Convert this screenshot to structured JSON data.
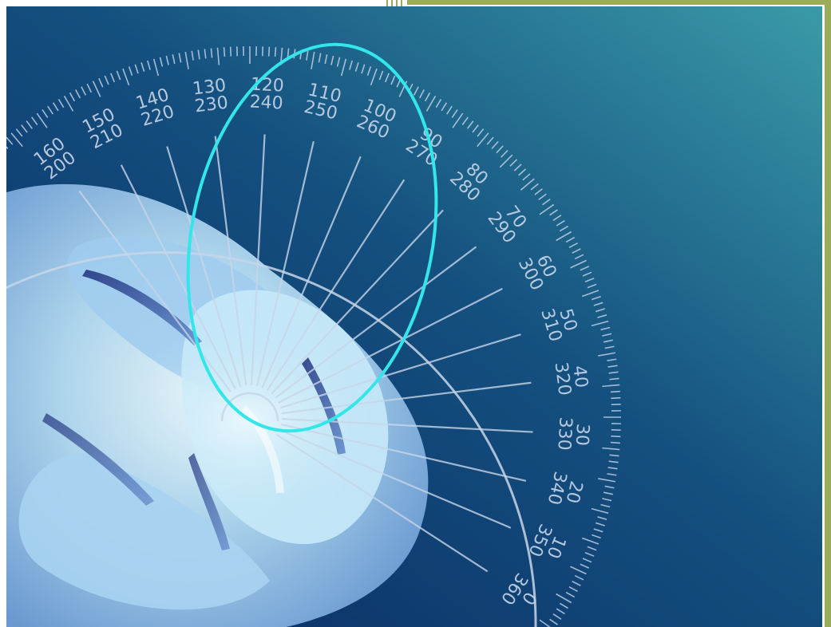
{
  "scene": {
    "subject": "compact-fluorescent-bulb-with-protractor",
    "colors": {
      "bg_dark": "#0c2f66",
      "bg_light": "#3a9aa8",
      "bulb": "#a9d4ef",
      "bulb_glow": "#dff4fb",
      "protractor_line": "#c7d6e8",
      "ellipse": "#33e6e9",
      "border_green": "#9aac5a"
    }
  },
  "protractor": {
    "labels": [
      {
        "outer": "0",
        "inner": "360"
      },
      {
        "outer": "10",
        "inner": "350"
      },
      {
        "outer": "20",
        "inner": "340"
      },
      {
        "outer": "30",
        "inner": "330"
      },
      {
        "outer": "40",
        "inner": "320"
      },
      {
        "outer": "50",
        "inner": "310"
      },
      {
        "outer": "60",
        "inner": "300"
      },
      {
        "outer": "70",
        "inner": "290"
      },
      {
        "outer": "80",
        "inner": "280"
      },
      {
        "outer": "90",
        "inner": "270"
      },
      {
        "outer": "100",
        "inner": "260"
      },
      {
        "outer": "110",
        "inner": "250"
      },
      {
        "outer": "120",
        "inner": "240"
      },
      {
        "outer": "130",
        "inner": "230"
      },
      {
        "outer": "140",
        "inner": "220"
      },
      {
        "outer": "150",
        "inner": "210"
      },
      {
        "outer": "160",
        "inner": "200"
      }
    ]
  }
}
